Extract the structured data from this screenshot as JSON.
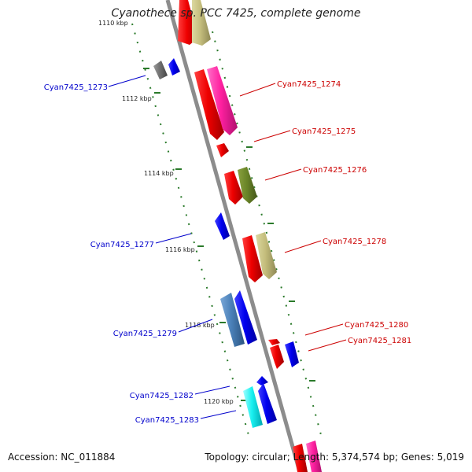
{
  "header": {
    "title": "Cyanothece sp. PCC 7425, complete genome"
  },
  "footer": {
    "accession": "Accession: NC_011884",
    "stats": "Topology: circular; Length: 5,374,574 bp; Genes: 5,019"
  },
  "colors": {
    "forward_label": "#cc0000",
    "reverse_label": "#0000cc",
    "axis": "#8c8c8c",
    "tick": "#2a7a2a"
  },
  "ticks": [
    {
      "label": "1110 kbp"
    },
    {
      "label": "1112 kbp"
    },
    {
      "label": "1114 kbp"
    },
    {
      "label": "1116 kbp"
    },
    {
      "label": "1118 kbp"
    },
    {
      "label": "1120 kbp"
    }
  ],
  "genes": [
    {
      "label": "Cyan7425_1273",
      "strand": "reverse"
    },
    {
      "label": "Cyan7425_1274",
      "strand": "forward"
    },
    {
      "label": "Cyan7425_1275",
      "strand": "forward"
    },
    {
      "label": "Cyan7425_1276",
      "strand": "forward"
    },
    {
      "label": "Cyan7425_1277",
      "strand": "reverse"
    },
    {
      "label": "Cyan7425_1278",
      "strand": "forward"
    },
    {
      "label": "Cyan7425_1279",
      "strand": "reverse"
    },
    {
      "label": "Cyan7425_1280",
      "strand": "forward"
    },
    {
      "label": "Cyan7425_1281",
      "strand": "forward"
    },
    {
      "label": "Cyan7425_1282",
      "strand": "reverse"
    },
    {
      "label": "Cyan7425_1283",
      "strand": "reverse"
    }
  ]
}
